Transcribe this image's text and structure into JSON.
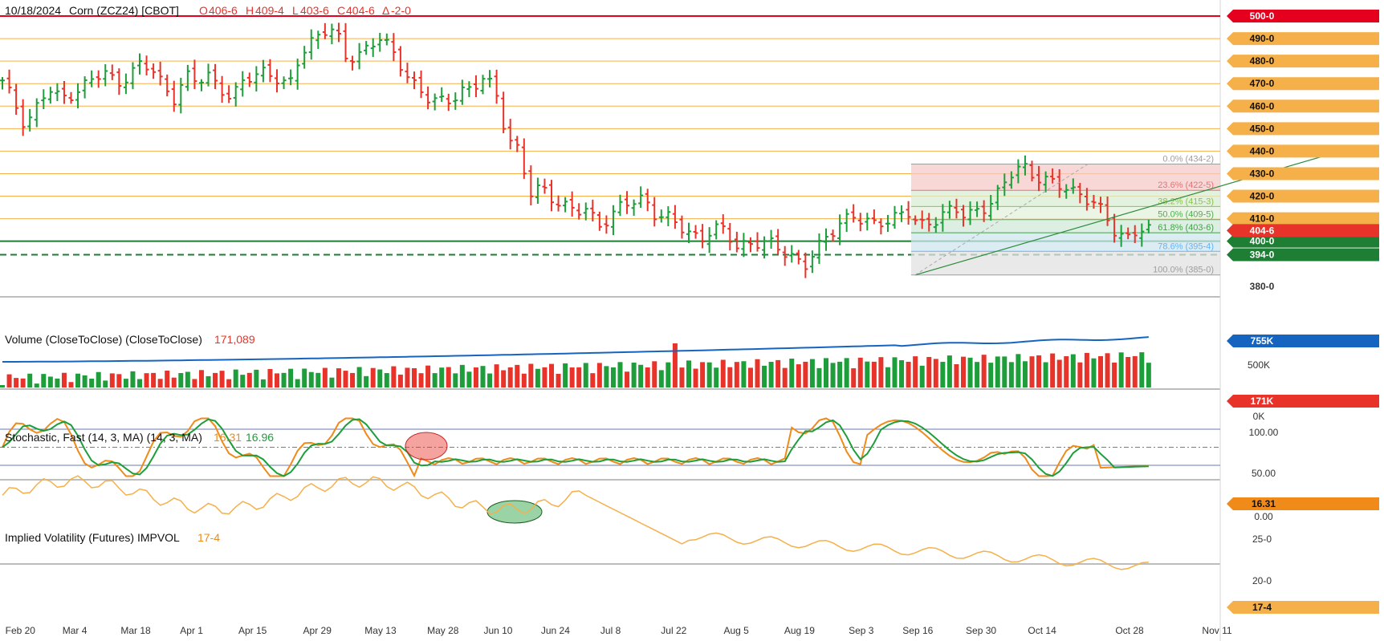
{
  "header": {
    "date": "10/18/2024",
    "symbol": "Corn (ZCZ24) [CBOT]",
    "open_label": "O",
    "open": "406-6",
    "high_label": "H",
    "high": "409-4",
    "low_label": "L",
    "low": "403-6",
    "close_label": "C",
    "close": "404-6",
    "change_label": "Δ",
    "change": "-2-0"
  },
  "colors": {
    "up": "#1e9e3a",
    "down": "#e8332a",
    "hline": "#f5b04a",
    "resistance": "#e5001d",
    "support": "#1e7e34",
    "volume_avg": "#1565c0",
    "stoch_k": "#f08a19",
    "stoch_d": "#1e9e3a",
    "implied_vol": "#f5b04a"
  },
  "price_axis": {
    "labels": [
      "500-0",
      "490-0",
      "480-0",
      "470-0",
      "460-0",
      "450-0",
      "440-0",
      "430-0",
      "420-0",
      "410-0",
      "400-0",
      "394-0",
      "380-0"
    ],
    "last_price_tag": "404-6"
  },
  "fibonacci": [
    "0.0% (434-2)",
    "23.6% (422-5)",
    "38.2% (415-3)",
    "50.0% (409-5)",
    "61.8% (403-6)",
    "78.6% (395-4)",
    "100.0% (385-0)"
  ],
  "volume": {
    "title": "Volume (CloseToClose)  (CloseToClose)",
    "value": "171,089",
    "axis_labels": [
      "500K",
      "0K"
    ],
    "avg_tag": "755K",
    "last_tag": "171K"
  },
  "stochastic": {
    "title": "Stochastic, Fast (14, 3, MA)  (14, 3, MA)",
    "k_value": "16.31",
    "d_value": "16.96",
    "axis_labels": [
      "100.00",
      "50.00",
      "0.00"
    ],
    "last_tag": "16.31"
  },
  "implied_vol": {
    "title": "Implied Volatility (Futures)  IMPVOL",
    "value": "17-4",
    "axis_labels": [
      "25-0",
      "20-0"
    ],
    "last_tag": "17-4"
  },
  "x_axis_labels": [
    "Feb 20",
    "Mar 4",
    "Mar 18",
    "Apr 1",
    "Apr 15",
    "Apr 29",
    "May 13",
    "May 28",
    "Jun 10",
    "Jun 24",
    "Jul 8",
    "Jul 22",
    "Aug 5",
    "Aug 19",
    "Sep 3",
    "Sep 16",
    "Sep 30",
    "Oct 14",
    "Oct 28",
    "Nov 11"
  ],
  "chart_data": {
    "type": "bar",
    "title": "10/18/2024 Corn (ZCZ24) [CBOT]",
    "y_range": [
      375,
      502
    ],
    "horizontal_levels": [
      500,
      490,
      480,
      470,
      460,
      450,
      440,
      430,
      420,
      410,
      400,
      394
    ],
    "closes_approx": [
      470,
      462,
      452,
      460,
      467,
      463,
      466,
      469,
      472,
      474,
      471,
      474,
      478,
      476,
      470,
      464,
      473,
      470,
      474,
      469,
      463,
      470,
      474,
      477,
      472,
      467,
      483,
      490,
      494,
      493,
      480,
      484,
      487,
      490,
      483,
      477,
      470,
      463,
      461,
      463,
      468,
      467,
      472,
      467,
      448,
      440,
      420,
      424,
      420,
      416,
      412,
      414,
      408,
      411,
      415,
      417,
      420,
      412,
      410,
      406,
      404,
      402,
      405,
      404,
      398,
      400,
      399,
      398,
      396,
      394,
      389,
      395,
      402,
      409,
      412,
      408,
      407,
      410,
      412,
      412,
      406,
      409,
      413,
      414,
      410,
      414,
      417,
      422,
      429,
      434,
      430,
      427,
      424,
      423,
      422,
      418,
      412,
      404,
      402,
      406,
      404
    ],
    "volume": {
      "avg_last": 755000,
      "last": 171089
    },
    "stochastic": {
      "k": 16.31,
      "d": 16.96,
      "upper": 80,
      "mid": 50,
      "lower": 20
    },
    "implied_vol_last": 17.4
  }
}
